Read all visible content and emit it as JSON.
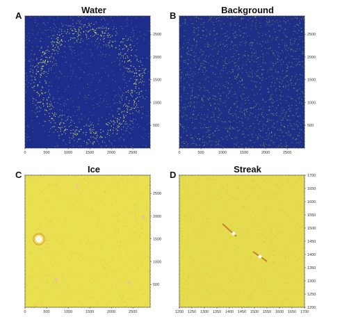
{
  "panels": [
    {
      "letter": "A",
      "title": "Water",
      "colors": {
        "base": "#1c2d8c",
        "noise": "#d8e25a"
      },
      "x_ticks": [
        "0",
        "500",
        "1000",
        "1500",
        "2000",
        "2500"
      ],
      "y_ticks": [
        "500",
        "1000",
        "1500",
        "2000",
        "2500"
      ]
    },
    {
      "letter": "B",
      "title": "Background",
      "colors": {
        "base": "#1e2f88",
        "noise": "#b8c84a"
      },
      "x_ticks": [
        "0",
        "500",
        "1000",
        "1500",
        "2000",
        "2500"
      ],
      "y_ticks": [
        "500",
        "1000",
        "1500",
        "2000",
        "2500"
      ]
    },
    {
      "letter": "C",
      "title": "Ice",
      "colors": {
        "base": "#e8e050",
        "noise": "#f2a14a"
      },
      "x_ticks": [
        "0",
        "500",
        "1000",
        "1500",
        "2000",
        "2500"
      ],
      "y_ticks": [
        "500",
        "1000",
        "1500",
        "2000",
        "2500"
      ]
    },
    {
      "letter": "D",
      "title": "Streak",
      "colors": {
        "base": "#e4dc4e",
        "noise": "#f0a04a"
      },
      "x_ticks": [
        "1200",
        "1250",
        "1300",
        "1350",
        "1400",
        "1450",
        "1500",
        "1550",
        "1600",
        "1650",
        "1700"
      ],
      "y_ticks": [
        "1200",
        "1250",
        "1300",
        "1350",
        "1400",
        "1450",
        "1500",
        "1550",
        "1600",
        "1650",
        "1700"
      ]
    }
  ]
}
